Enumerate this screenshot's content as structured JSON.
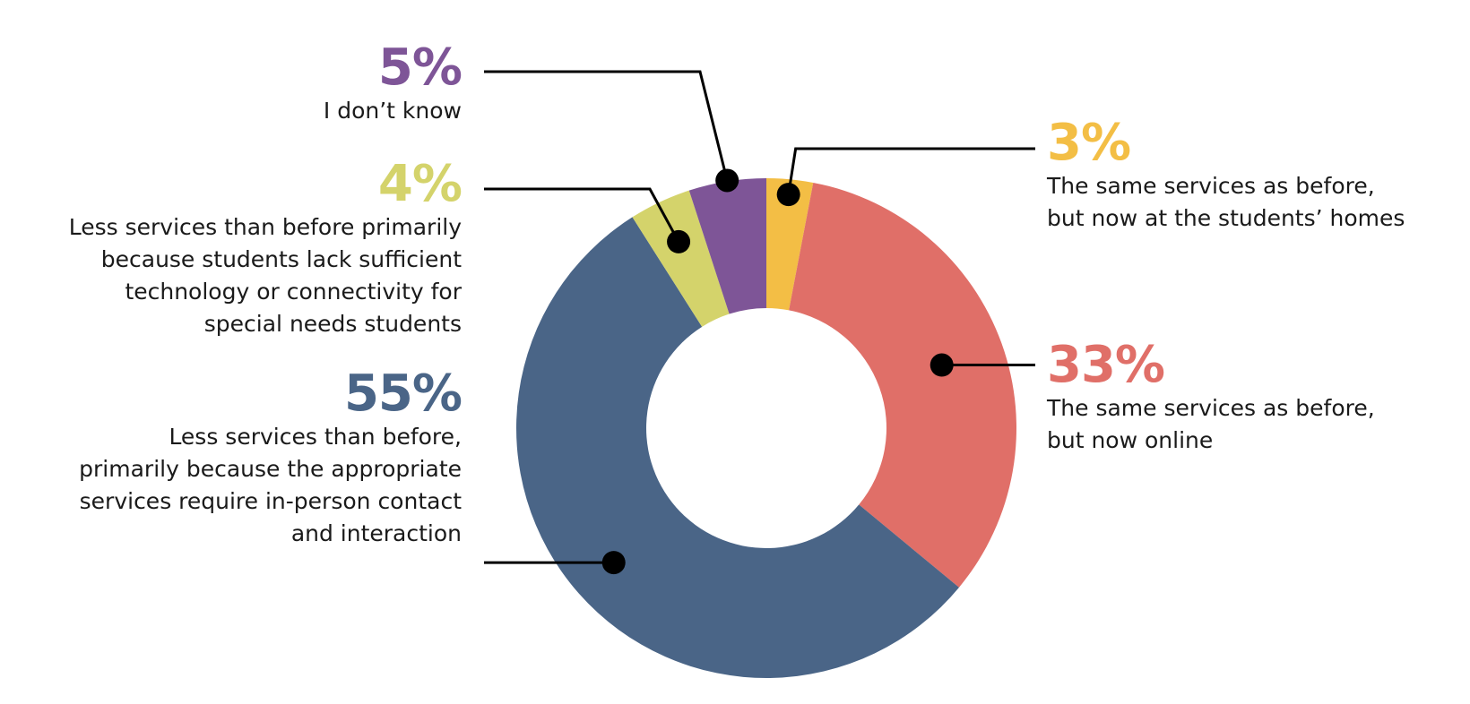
{
  "chart_data": {
    "type": "pie",
    "donut": true,
    "slices": [
      {
        "key": "same-home",
        "value": 3,
        "pct_label": "3%",
        "color": "#F3BE45",
        "label": "The same services as before,\nbut now at the students’ homes"
      },
      {
        "key": "same-online",
        "value": 33,
        "pct_label": "33%",
        "color": "#E06F68",
        "label": "The same services as before,\nbut now online"
      },
      {
        "key": "less-in-person",
        "value": 55,
        "pct_label": "55%",
        "color": "#4A6587",
        "label": "Less services than before,\nprimarily because the appropriate\nservices require in-person contact\nand interaction"
      },
      {
        "key": "less-tech",
        "value": 4,
        "pct_label": "4%",
        "color": "#D4D36B",
        "label": "Less services than before primarily\nbecause students lack sufficient\ntechnology or connectivity for\nspecial needs students"
      },
      {
        "key": "dont-know",
        "value": 5,
        "pct_label": "5%",
        "color": "#7E5597",
        "label": "I don’t know"
      }
    ]
  }
}
